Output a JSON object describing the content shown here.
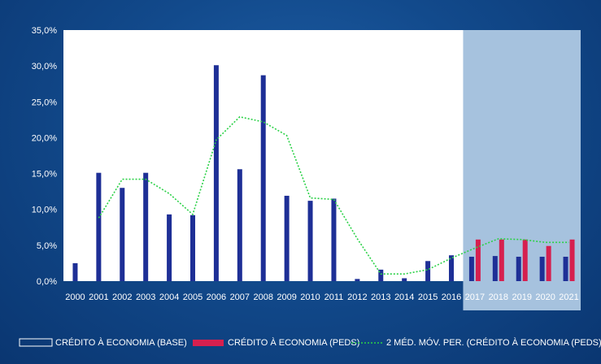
{
  "chart_data": {
    "type": "bar",
    "categories": [
      "2000",
      "2001",
      "2002",
      "2003",
      "2004",
      "2005",
      "2006",
      "2007",
      "2008",
      "2009",
      "2010",
      "2011",
      "2012",
      "2013",
      "2014",
      "2015",
      "2016",
      "2017",
      "2018",
      "2019",
      "2020",
      "2021"
    ],
    "y_ticks": [
      "0,0%",
      "5,0%",
      "10,0%",
      "15,0%",
      "20,0%",
      "25,0%",
      "30,0%",
      "35,0%"
    ],
    "ylim": [
      0,
      35
    ],
    "forecast_from": "2017",
    "series": [
      {
        "name": "CRÉDITO À ECONOMIA (BASE)",
        "type": "bar",
        "color": "#1e2f96",
        "values": [
          2.5,
          15.1,
          13.0,
          15.1,
          9.3,
          9.2,
          30.1,
          15.6,
          28.7,
          11.9,
          11.2,
          11.5,
          0.3,
          1.6,
          0.4,
          2.8,
          3.6,
          3.4,
          3.5,
          3.4,
          3.4,
          3.4
        ]
      },
      {
        "name": "CRÉDITO À ECONOMIA (PEDS)",
        "type": "bar",
        "color": "#d6204f",
        "values": [
          null,
          null,
          null,
          null,
          null,
          null,
          null,
          null,
          null,
          null,
          null,
          null,
          null,
          null,
          null,
          null,
          null,
          5.8,
          5.8,
          5.8,
          4.9,
          5.8
        ]
      },
      {
        "name": "2 MÉD. MÓV. PER. (CRÉDITO À ECONOMIA (PEDS))",
        "type": "line",
        "style": "dotted",
        "color": "#2bd147",
        "values": [
          null,
          8.8,
          14.2,
          14.2,
          12.2,
          9.3,
          19.7,
          22.9,
          22.2,
          20.3,
          11.6,
          11.4,
          5.9,
          1.0,
          1.0,
          1.6,
          3.2,
          4.6,
          5.9,
          5.8,
          5.4,
          5.4
        ]
      }
    ],
    "grid": false,
    "legend_position": "bottom"
  },
  "colors": {
    "background": "#124a8c",
    "plot_area": "#ffffff",
    "forecast_band": "#a6c2de",
    "text": "#ffffff"
  }
}
